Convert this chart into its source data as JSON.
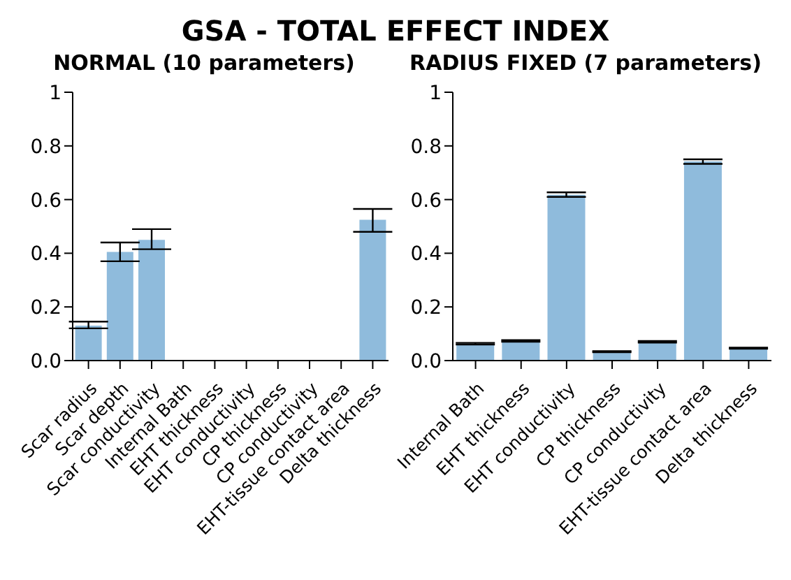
{
  "chart_data": [
    {
      "type": "bar",
      "title": "GSA - TOTAL EFFECT INDEX",
      "subtitle": "NORMAL (10 parameters)",
      "categories": [
        "Scar radius",
        "Scar depth",
        "Scar conductivity",
        "Internal Bath",
        "EHT thickness",
        "EHT conductivity",
        "CP thickness",
        "CP conductivity",
        "EHT-tissue contact area",
        "Delta thickness"
      ],
      "values": [
        0.13,
        0.405,
        0.45,
        null,
        0,
        0,
        0,
        0,
        0,
        0.525
      ],
      "errors": [
        [
          0.12,
          0.145
        ],
        [
          0.37,
          0.44
        ],
        [
          0.415,
          0.49
        ],
        null,
        null,
        null,
        null,
        null,
        null,
        [
          0.48,
          0.565
        ]
      ],
      "color": "#8fbbdc",
      "ylim": [
        0,
        1
      ],
      "yticks": [
        {
          "value": 0,
          "label": "0.0"
        },
        0.2,
        0.4,
        0.6,
        0.8,
        1
      ],
      "grid": false,
      "legend": false
    },
    {
      "type": "bar",
      "title": "RADIUS FIXED (7 parameters)",
      "categories": [
        "Internal Bath",
        "EHT thickness",
        "EHT conductivity",
        "CP thickness",
        "CP conductivity",
        "EHT-tissue contact area",
        "Delta thickness"
      ],
      "values": [
        0.063,
        0.073,
        0.618,
        0.033,
        0.07,
        0.742,
        0.046
      ],
      "errors": [
        0.003,
        0.003,
        [
          0.61,
          0.627
        ],
        0.002,
        0.003,
        [
          0.733,
          0.75
        ],
        0.002
      ],
      "color": "#8fbbdc",
      "ylim": [
        0,
        1
      ],
      "yticks": [
        {
          "value": 0,
          "label": "0.0"
        },
        0.2,
        0.4,
        0.6,
        0.8,
        1
      ],
      "grid": false,
      "legend": false
    }
  ]
}
